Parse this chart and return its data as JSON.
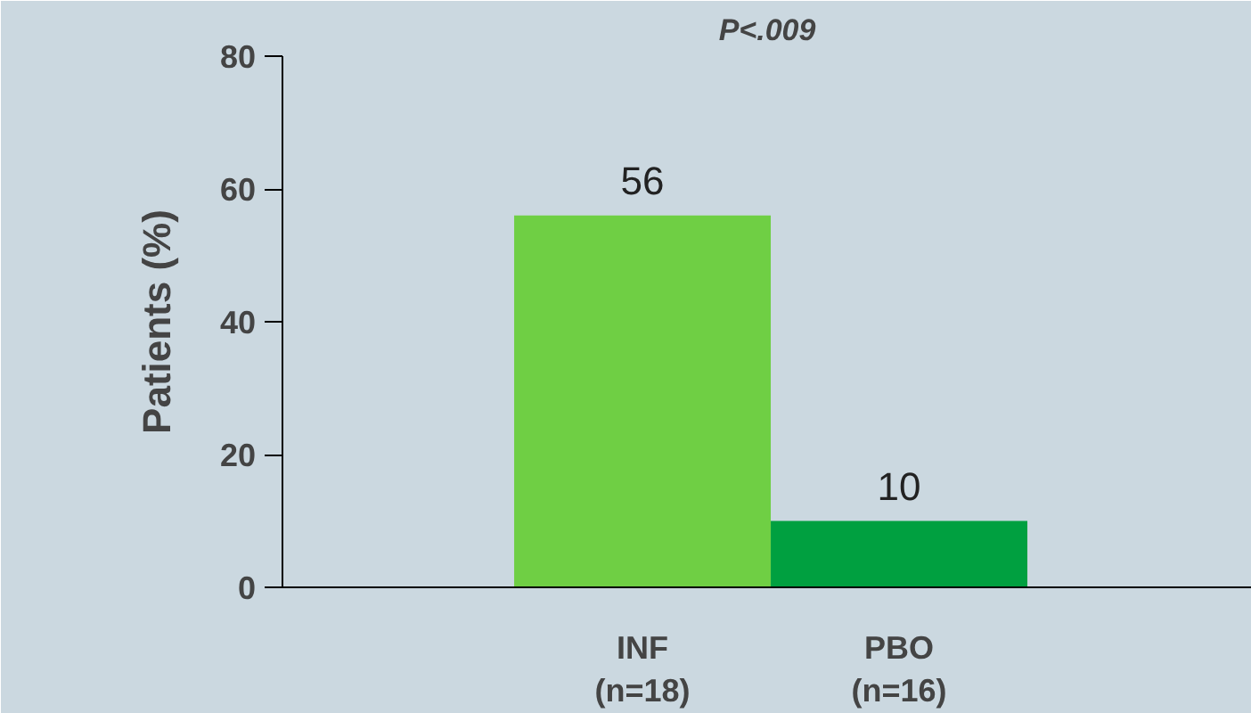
{
  "chart_data": {
    "type": "bar",
    "title": "P<.009",
    "ylabel": "Patients (%)",
    "categories": [
      "INF\n(n=18)",
      "PBO\n(n=16)"
    ],
    "values": [
      56,
      10
    ],
    "colors": [
      "#6fcf44",
      "#00a040"
    ],
    "ylim": [
      0,
      80
    ],
    "yticks": [
      0,
      20,
      40,
      60,
      80
    ],
    "data_labels": true,
    "grid": false
  }
}
